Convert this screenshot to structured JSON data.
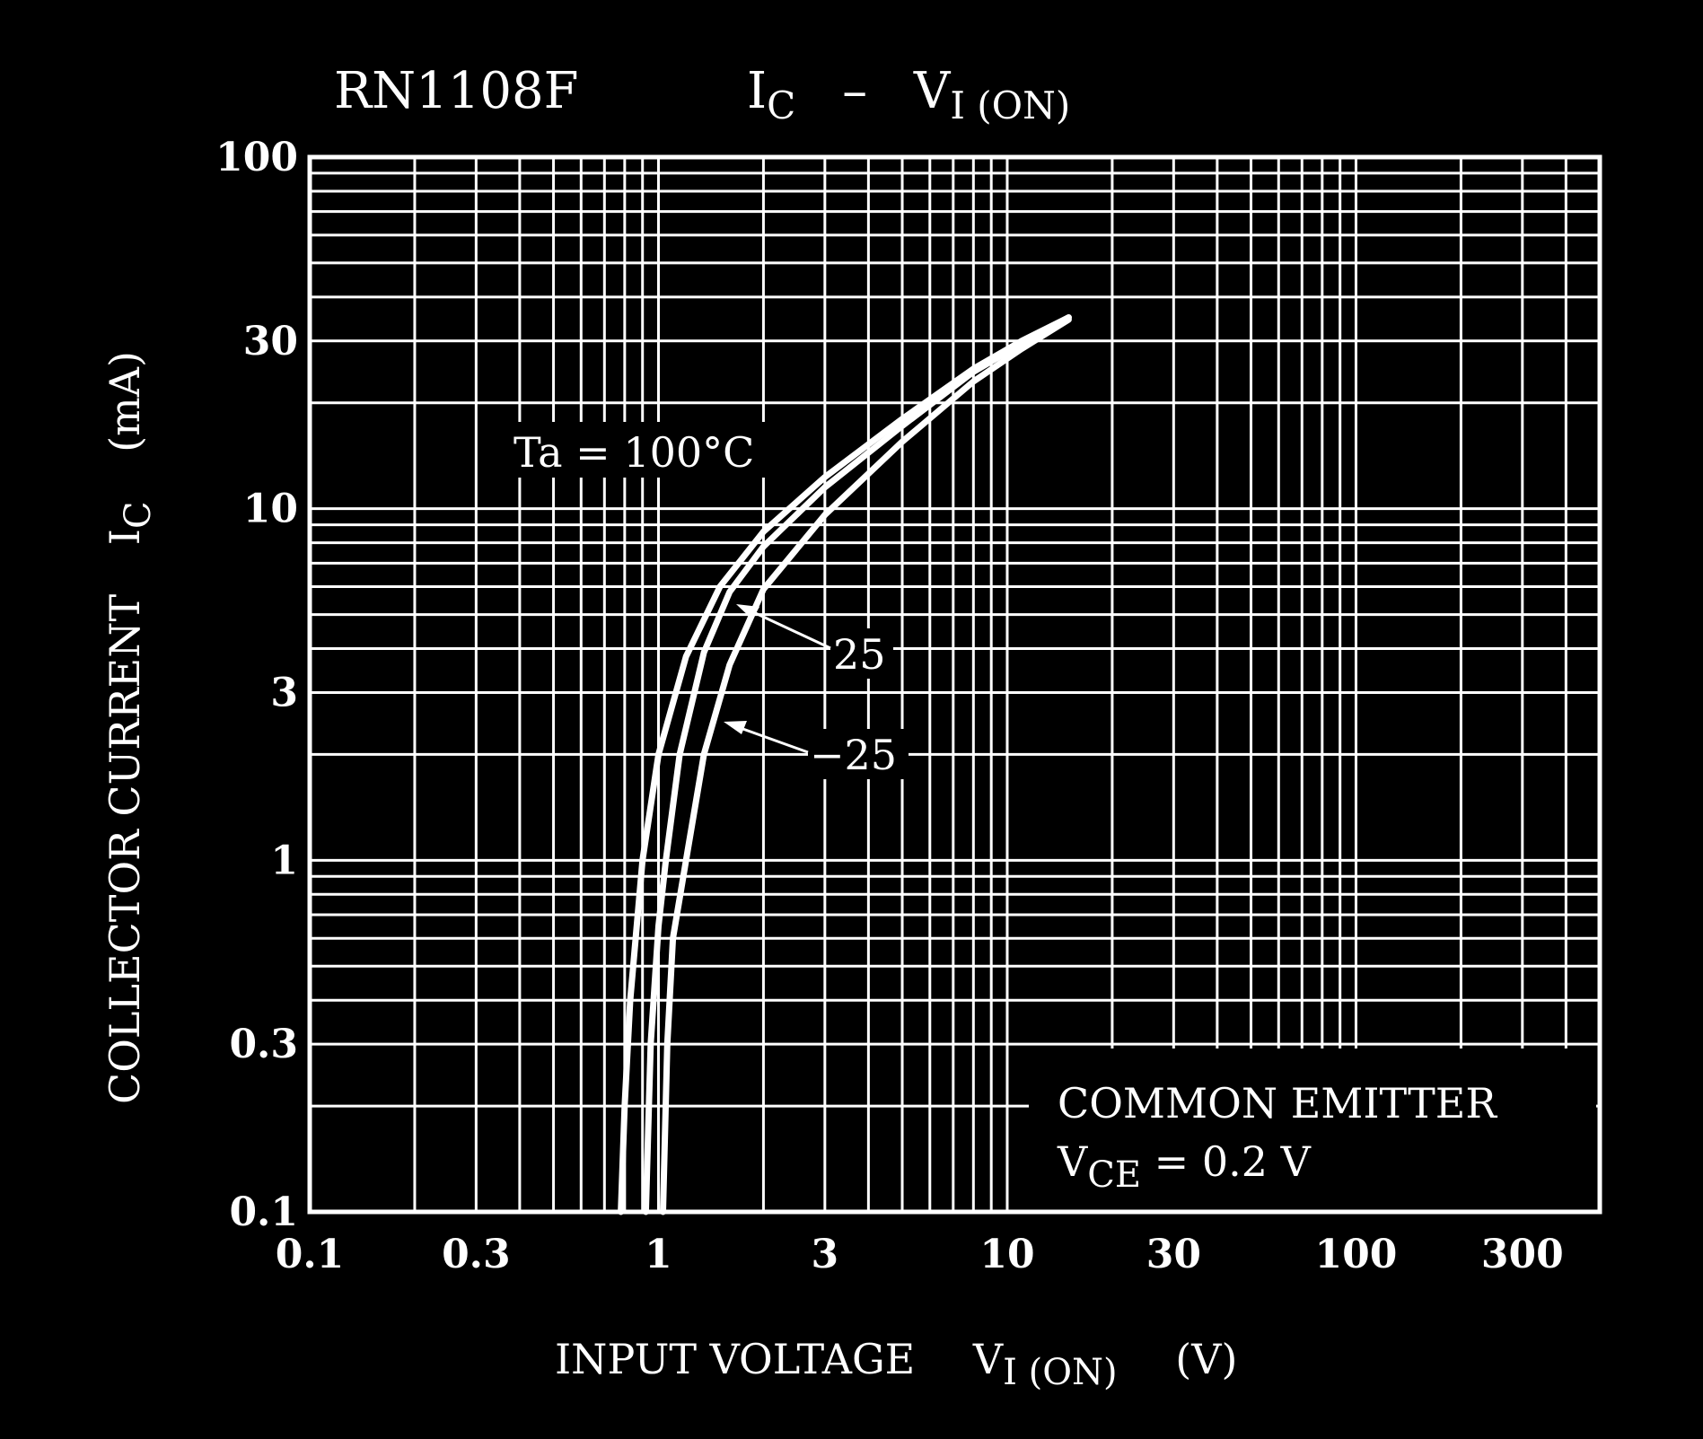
{
  "chart_data": {
    "type": "line",
    "title_left": "RN1108F",
    "title_main": "I",
    "title_main_sub": "C",
    "title_dash": "–",
    "title_v": "V",
    "title_v_sub": "I (ON)",
    "xlabel": "INPUT  VOLTAGE",
    "xlabel_sym": "V",
    "xlabel_sub": "I (ON)",
    "xlabel_unit": "(V)",
    "ylabel": "COLLECTOR CURRENT",
    "ylabel_sym": "I",
    "ylabel_sub": "C",
    "ylabel_unit": "(mA)",
    "x_scale": "log",
    "y_scale": "log",
    "xlim": [
      0.1,
      500
    ],
    "ylim": [
      0.1,
      100
    ],
    "x_ticks": [
      {
        "v": 0.1,
        "label": "0.1"
      },
      {
        "v": 0.3,
        "label": "0.3"
      },
      {
        "v": 1,
        "label": "1"
      },
      {
        "v": 3,
        "label": "3"
      },
      {
        "v": 10,
        "label": "10"
      },
      {
        "v": 30,
        "label": "30"
      },
      {
        "v": 100,
        "label": "100"
      },
      {
        "v": 300,
        "label": "300"
      }
    ],
    "y_ticks": [
      {
        "v": 0.1,
        "label": "0.1"
      },
      {
        "v": 0.3,
        "label": "0.3"
      },
      {
        "v": 1,
        "label": "1"
      },
      {
        "v": 3,
        "label": "3"
      },
      {
        "v": 10,
        "label": "10"
      },
      {
        "v": 30,
        "label": "30"
      },
      {
        "v": 100,
        "label": "100"
      }
    ],
    "grid": true,
    "series": [
      {
        "name": "Ta = 100°C",
        "x": [
          0.78,
          0.8,
          0.83,
          0.9,
          1.0,
          1.2,
          1.5,
          2.0,
          3.0,
          5.0,
          8.0,
          11.0,
          15.0
        ],
        "y": [
          0.1,
          0.2,
          0.4,
          1.0,
          2.0,
          3.8,
          6.0,
          8.6,
          12.3,
          18.0,
          25.0,
          30.0,
          35.0
        ]
      },
      {
        "name": "25",
        "x": [
          0.92,
          0.95,
          1.0,
          1.05,
          1.15,
          1.35,
          1.6,
          2.0,
          3.0,
          5.0,
          8.0,
          11.0,
          15.0
        ],
        "y": [
          0.1,
          0.3,
          0.65,
          1.0,
          2.0,
          3.9,
          5.8,
          7.8,
          11.5,
          17.2,
          24.5,
          29.5,
          35.0
        ]
      },
      {
        "name": "−25",
        "x": [
          1.03,
          1.06,
          1.1,
          1.2,
          1.35,
          1.6,
          2.0,
          3.0,
          5.0,
          8.0,
          11.0,
          15.0
        ],
        "y": [
          0.1,
          0.3,
          0.6,
          1.0,
          2.0,
          3.6,
          5.9,
          9.6,
          15.5,
          23.0,
          28.5,
          34.5
        ]
      }
    ],
    "annotations": {
      "ta_label": "Ta = 100°C",
      "label_25": "25",
      "label_m25": "−25",
      "note_line1": "COMMON EMITTER",
      "note_v": "V",
      "note_sub": "CE",
      "note_rest": " = 0.2 V"
    }
  }
}
